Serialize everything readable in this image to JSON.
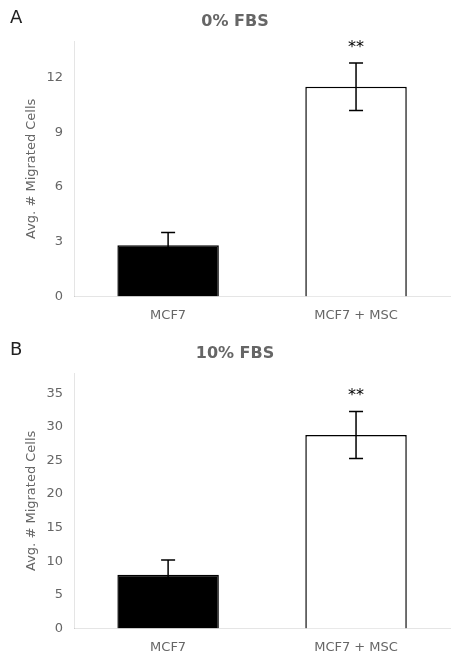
{
  "chart_data": [
    {
      "type": "bar",
      "panel_label": "A",
      "title": "0% FBS",
      "categories": [
        "MCF7",
        "MCF7 + MSC"
      ],
      "values": [
        2.8,
        11.5
      ],
      "errors": [
        0.7,
        1.3
      ],
      "colors": [
        "#000000",
        "#ffffff"
      ],
      "ylabel": "Avg. # Migrated Cells",
      "ylim": [
        0,
        14
      ],
      "yticks": [
        0,
        3,
        6,
        9,
        12
      ],
      "annotations": [
        {
          "text": "**",
          "category": "MCF7 + MSC"
        }
      ],
      "grid": false
    },
    {
      "type": "bar",
      "panel_label": "B",
      "title": "10% FBS",
      "categories": [
        "MCF7",
        "MCF7 + MSC"
      ],
      "values": [
        8.0,
        28.8
      ],
      "errors": [
        2.2,
        3.5
      ],
      "colors": [
        "#000000",
        "#ffffff"
      ],
      "ylabel": "Avg. # Migrated Cells",
      "ylim": [
        0,
        38
      ],
      "yticks": [
        0,
        5,
        10,
        15,
        20,
        25,
        30,
        35
      ],
      "annotations": [
        {
          "text": "**",
          "category": "MCF7 + MSC"
        }
      ],
      "grid": false
    }
  ]
}
